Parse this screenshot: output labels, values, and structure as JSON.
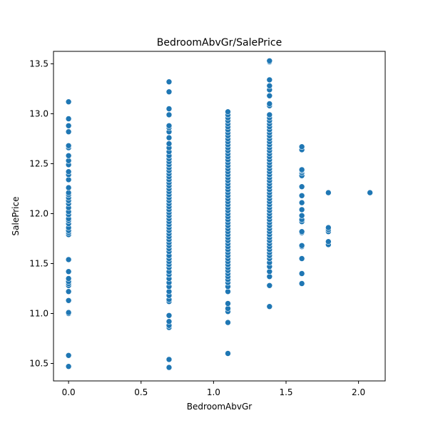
{
  "chart_data": {
    "type": "scatter",
    "title": "BedroomAbvGr/SalePrice",
    "xlabel": "BedroomAbvGr",
    "ylabel": "SalePrice",
    "xlim": [
      -0.104,
      2.184
    ],
    "ylim": [
      10.325,
      13.625
    ],
    "xticks": [
      0.0,
      0.5,
      1.0,
      1.5,
      2.0
    ],
    "xtick_labels": [
      "0.0",
      "0.5",
      "1.0",
      "1.5",
      "2.0"
    ],
    "yticks": [
      10.5,
      11.0,
      11.5,
      12.0,
      12.5,
      13.0,
      13.5
    ],
    "ytick_labels": [
      "10.5",
      "11.0",
      "11.5",
      "12.0",
      "12.5",
      "13.0",
      "13.5"
    ],
    "grid": false,
    "marker_color": "#1f77b4",
    "marker_edge_color": "#ffffff",
    "columns": [
      {
        "x": 0.0,
        "y": [
          10.47,
          10.58,
          11.0,
          11.01,
          11.13,
          11.22,
          11.28,
          11.3,
          11.32,
          11.35,
          11.42,
          11.54,
          11.79,
          11.81,
          11.83,
          11.86,
          11.9,
          11.93,
          11.95,
          11.99,
          12.02,
          12.06,
          12.1,
          12.13,
          12.16,
          12.19,
          12.21,
          12.26,
          12.34,
          12.39,
          12.42,
          12.49,
          12.53,
          12.58,
          12.66,
          12.68,
          12.82,
          12.88,
          12.95,
          13.12
        ]
      },
      {
        "x": 0.693,
        "y": [
          10.46,
          10.54,
          10.86,
          10.88,
          10.92,
          10.98,
          11.12,
          11.14,
          11.18,
          11.22,
          11.27,
          11.31,
          11.35,
          11.39,
          11.42,
          11.46,
          11.49,
          11.52,
          11.55,
          11.58,
          11.62,
          11.65,
          11.68,
          11.71,
          11.74,
          11.77,
          11.8,
          11.83,
          11.86,
          11.89,
          11.92,
          11.95,
          11.98,
          12.01,
          12.04,
          12.07,
          12.1,
          12.13,
          12.16,
          12.19,
          12.22,
          12.25,
          12.28,
          12.31,
          12.34,
          12.37,
          12.4,
          12.43,
          12.46,
          12.49,
          12.52,
          12.55,
          12.58,
          12.62,
          12.66,
          12.7,
          12.76,
          12.82,
          12.86,
          12.88,
          12.99,
          13.05,
          13.22,
          13.32
        ]
      },
      {
        "x": 1.099,
        "y": [
          10.6,
          10.91,
          11.02,
          11.05,
          11.1,
          11.22,
          11.27,
          11.31,
          11.34,
          11.37,
          11.4,
          11.43,
          11.46,
          11.49,
          11.52,
          11.55,
          11.58,
          11.61,
          11.64,
          11.67,
          11.7,
          11.73,
          11.76,
          11.79,
          11.82,
          11.85,
          11.88,
          11.91,
          11.94,
          11.97,
          12.0,
          12.03,
          12.06,
          12.09,
          12.12,
          12.15,
          12.18,
          12.21,
          12.24,
          12.27,
          12.3,
          12.33,
          12.36,
          12.39,
          12.42,
          12.45,
          12.48,
          12.51,
          12.54,
          12.57,
          12.6,
          12.63,
          12.66,
          12.69,
          12.72,
          12.75,
          12.78,
          12.81,
          12.84,
          12.87,
          12.9,
          12.93,
          12.96,
          12.99,
          13.02
        ]
      },
      {
        "x": 1.386,
        "y": [
          11.07,
          11.28,
          11.37,
          11.42,
          11.47,
          11.51,
          11.55,
          11.58,
          11.61,
          11.64,
          11.67,
          11.7,
          11.73,
          11.76,
          11.79,
          11.82,
          11.85,
          11.88,
          11.91,
          11.94,
          11.97,
          12.0,
          12.03,
          12.06,
          12.09,
          12.12,
          12.15,
          12.18,
          12.21,
          12.24,
          12.27,
          12.3,
          12.33,
          12.36,
          12.39,
          12.42,
          12.45,
          12.48,
          12.51,
          12.54,
          12.57,
          12.6,
          12.63,
          12.66,
          12.69,
          12.72,
          12.75,
          12.78,
          12.81,
          12.84,
          12.87,
          12.9,
          12.93,
          12.96,
          12.99,
          13.08,
          13.1,
          13.18,
          13.24,
          13.28,
          13.34,
          13.52,
          13.53
        ]
      },
      {
        "x": 1.609,
        "y": [
          11.3,
          11.4,
          11.55,
          11.67,
          11.68,
          11.81,
          11.82,
          11.92,
          11.94,
          11.98,
          12.04,
          12.11,
          12.18,
          12.27,
          12.38,
          12.41,
          12.43,
          12.44,
          12.64,
          12.67
        ]
      },
      {
        "x": 1.792,
        "y": [
          11.69,
          11.72,
          11.82,
          11.84,
          11.86,
          12.21
        ]
      },
      {
        "x": 2.079,
        "y": [
          12.21
        ]
      }
    ]
  }
}
